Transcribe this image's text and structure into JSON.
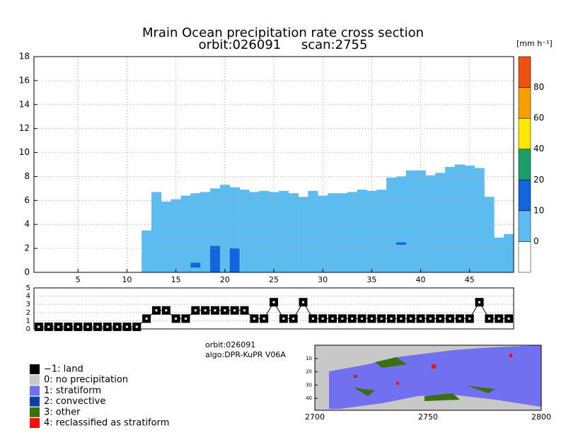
{
  "chart_data": {
    "type": "cross-section",
    "title": "Mrain Ocean precipitation rate cross section",
    "subtitle": "orbit:026091     scan:2755",
    "unit_label": "[mm h⁻¹]",
    "xlim": [
      0.5,
      49.5
    ],
    "xticks": [
      5,
      10,
      15,
      20,
      25,
      30,
      35,
      40,
      45
    ],
    "ylim": [
      0,
      18
    ],
    "yticks": [
      0,
      2,
      4,
      6,
      8,
      10,
      12,
      14,
      16,
      18
    ],
    "grid": true,
    "rain_color": "#5cbcf0",
    "rain_top": [
      null,
      null,
      null,
      null,
      null,
      null,
      null,
      null,
      null,
      null,
      null,
      3.5,
      6.7,
      5.9,
      6.1,
      6.4,
      6.6,
      6.7,
      7.0,
      7.3,
      7.1,
      6.9,
      6.7,
      6.8,
      6.7,
      6.8,
      6.6,
      6.3,
      6.8,
      6.4,
      6.6,
      6.6,
      6.7,
      6.9,
      6.8,
      6.9,
      7.9,
      8.0,
      8.5,
      8.5,
      8.1,
      8.3,
      8.8,
      9.0,
      8.9,
      8.7,
      6.3,
      2.9,
      3.2
    ],
    "cells": {
      "color": "#1464e0",
      "rays": [
        17,
        19,
        21,
        38
      ],
      "bottom": [
        0.4,
        0,
        0,
        2.3
      ],
      "top": [
        0.8,
        2.2,
        2.0,
        2.5
      ]
    },
    "colorbar": {
      "labels": [
        0,
        10,
        20,
        40,
        60,
        80
      ],
      "colors": [
        "#ffffff",
        "#5cbcf0",
        "#1464e0",
        "#1a9e6a",
        "#ffe800",
        "#f5a000",
        "#f05010"
      ]
    },
    "type_panel": {
      "ylim": [
        0,
        5
      ],
      "yticks": [
        0,
        1,
        2,
        3,
        4,
        5
      ],
      "values": [
        0,
        0,
        0,
        0,
        0,
        0,
        0,
        0,
        0,
        0,
        0,
        1,
        2,
        2,
        1,
        1,
        2,
        2,
        2,
        2,
        2,
        2,
        1,
        1,
        3,
        1,
        1,
        3,
        1,
        1,
        1,
        1,
        1,
        1,
        1,
        1,
        1,
        1,
        1,
        1,
        1,
        1,
        1,
        1,
        1,
        3,
        1,
        1,
        1
      ]
    },
    "info": [
      "orbit:026091",
      "algo:DPR-KuPR V06A"
    ],
    "legend": [
      {
        "label": "−1: land",
        "color": "#000000"
      },
      {
        "label": "0: no precipitation",
        "color": "#c8c8c8"
      },
      {
        "label": "1: stratiform",
        "color": "#7070f0"
      },
      {
        "label": "2: convective",
        "color": "#1040a0"
      },
      {
        "label": "3: other",
        "color": "#3a7010"
      },
      {
        "label": "4: reclassified as stratiform",
        "color": "#f01010"
      }
    ],
    "map": {
      "xlim": [
        2700,
        2800
      ],
      "xticks": [
        2700,
        2750,
        2800
      ],
      "ylim": [
        0,
        49
      ],
      "yticks": [
        10,
        20,
        30,
        40
      ]
    }
  }
}
